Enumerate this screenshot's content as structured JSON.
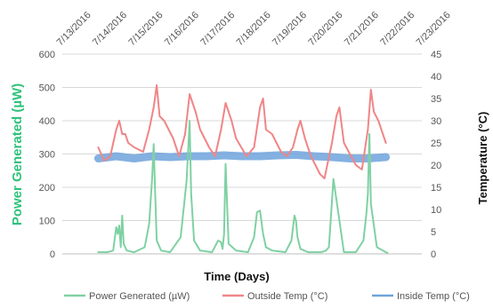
{
  "chart_data": {
    "type": "line",
    "title": "",
    "xlabel": "Time (Days)",
    "ylabel_left": "Power Generated (µW)",
    "ylabel_right": "Temperature (°C)",
    "x_ticks": [
      "7/13/2016",
      "7/14/2016",
      "7/15/2016",
      "7/16/2016",
      "7/17/2016",
      "7/18/2016",
      "7/19/2016",
      "7/20/2016",
      "7/21/2016",
      "7/22/2016",
      "7/23/2016"
    ],
    "y_left_ticks": [
      "0",
      "100",
      "200",
      "300",
      "400",
      "500",
      "600"
    ],
    "y_right_ticks": [
      "0",
      "5",
      "10",
      "15",
      "20",
      "25",
      "30",
      "35",
      "40",
      "45"
    ],
    "ylim_left": [
      0,
      600
    ],
    "ylim_right": [
      0,
      45
    ],
    "xlim": [
      "7/13/2016",
      "7/23/2016"
    ],
    "grid": "horizontal",
    "legend_position": "bottom",
    "series": [
      {
        "name": "Power Generated (µW)",
        "axis": "left",
        "color": "#7fd1a3",
        "x": [
          "7/14/2016 00:00",
          "7/14/2016 06:00",
          "7/14/2016 10:00",
          "7/14/2016 12:00",
          "7/14/2016 13:00",
          "7/14/2016 14:00",
          "7/14/2016 15:00",
          "7/14/2016 16:00",
          "7/14/2016 17:00",
          "7/14/2016 19:00",
          "7/15/2016 00:00",
          "7/15/2016 07:00",
          "7/15/2016 10:00",
          "7/15/2016 12:00",
          "7/15/2016 13:00",
          "7/15/2016 14:00",
          "7/15/2016 15:00",
          "7/15/2016 18:00",
          "7/16/2016 00:00",
          "7/16/2016 07:00",
          "7/16/2016 11:00",
          "7/16/2016 13:00",
          "7/16/2016 14:00",
          "7/16/2016 16:00",
          "7/16/2016 20:00",
          "7/17/2016 04:00",
          "7/17/2016 08:00",
          "7/17/2016 10:00",
          "7/17/2016 11:00",
          "7/17/2016 12:00",
          "7/17/2016 13:00",
          "7/17/2016 15:00",
          "7/17/2016 20:00",
          "7/18/2016 04:00",
          "7/18/2016 08:00",
          "7/18/2016 10:00",
          "7/18/2016 12:00",
          "7/18/2016 14:00",
          "7/18/2016 16:00",
          "7/18/2016 20:00",
          "7/19/2016 05:00",
          "7/19/2016 09:00",
          "7/19/2016 11:00",
          "7/19/2016 12:00",
          "7/19/2016 13:00",
          "7/19/2016 15:00",
          "7/19/2016 20:00",
          "7/20/2016 05:00",
          "7/20/2016 08:00",
          "7/20/2016 10:00",
          "7/20/2016 13:00",
          "7/20/2016 20:00",
          "7/21/2016 04:00",
          "7/21/2016 09:00",
          "7/21/2016 11:00",
          "7/21/2016 12:00",
          "7/21/2016 13:00",
          "7/21/2016 14:00",
          "7/21/2016 18:00",
          "7/22/2016 00:00",
          "7/22/2016 01:00"
        ],
        "values": [
          5,
          5,
          10,
          80,
          60,
          85,
          20,
          115,
          30,
          10,
          5,
          20,
          90,
          230,
          330,
          180,
          40,
          10,
          5,
          50,
          220,
          400,
          180,
          40,
          10,
          5,
          40,
          35,
          15,
          60,
          270,
          30,
          10,
          5,
          50,
          125,
          130,
          60,
          20,
          10,
          5,
          40,
          115,
          100,
          50,
          15,
          5,
          5,
          10,
          20,
          225,
          5,
          5,
          40,
          120,
          180,
          360,
          150,
          20,
          5,
          3
        ]
      },
      {
        "name": "Outside Temp (°C)",
        "axis": "right",
        "color": "#f08587",
        "x": [
          "7/14/2016 00:00",
          "7/14/2016 04:00",
          "7/14/2016 08:00",
          "7/14/2016 12:00",
          "7/14/2016 14:00",
          "7/14/2016 16:00",
          "7/14/2016 18:00",
          "7/14/2016 20:00",
          "7/15/2016 00:00",
          "7/15/2016 06:00",
          "7/15/2016 10:00",
          "7/15/2016 13:00",
          "7/15/2016 15:00",
          "7/15/2016 17:00",
          "7/15/2016 20:00",
          "7/16/2016 02:00",
          "7/16/2016 06:00",
          "7/16/2016 10:00",
          "7/16/2016 13:00",
          "7/16/2016 15:00",
          "7/16/2016 17:00",
          "7/16/2016 20:00",
          "7/17/2016 02:00",
          "7/17/2016 06:00",
          "7/17/2016 10:00",
          "7/17/2016 13:00",
          "7/17/2016 15:00",
          "7/17/2016 17:00",
          "7/17/2016 20:00",
          "7/18/2016 03:00",
          "7/18/2016 08:00",
          "7/18/2016 12:00",
          "7/18/2016 14:00",
          "7/18/2016 16:00",
          "7/18/2016 20:00",
          "7/19/2016 02:00",
          "7/19/2016 06:00",
          "7/19/2016 10:00",
          "7/19/2016 13:00",
          "7/19/2016 15:00",
          "7/19/2016 18:00",
          "7/19/2016 22:00",
          "7/20/2016 04:00",
          "7/20/2016 07:00",
          "7/20/2016 12:00",
          "7/20/2016 15:00",
          "7/20/2016 17:00",
          "7/20/2016 20:00",
          "7/21/2016 04:00",
          "7/21/2016 08:00",
          "7/21/2016 12:00",
          "7/21/2016 14:00",
          "7/21/2016 16:00",
          "7/21/2016 19:00",
          "7/22/2016 00:00"
        ],
        "values": [
          24,
          21,
          22,
          28,
          30,
          27,
          27,
          25,
          24,
          23,
          28,
          33,
          38,
          31,
          30,
          26,
          22,
          27,
          36,
          34,
          32,
          28,
          24,
          22,
          28,
          34,
          32,
          30,
          26,
          22,
          24,
          33,
          35,
          28,
          27,
          23,
          22,
          24,
          28,
          30,
          26,
          22,
          18,
          17,
          25,
          31,
          33,
          25,
          20,
          19,
          28,
          37,
          32,
          30,
          25
        ]
      },
      {
        "name": "Inside Temp (°C)",
        "axis": "right",
        "color": "#6fa3dc",
        "x": [
          "7/14/2016 00:00",
          "7/14/2016 12:00",
          "7/15/2016 00:00",
          "7/15/2016 12:00",
          "7/16/2016 00:00",
          "7/16/2016 12:00",
          "7/17/2016 00:00",
          "7/17/2016 12:00",
          "7/18/2016 00:00",
          "7/18/2016 12:00",
          "7/19/2016 00:00",
          "7/19/2016 12:00",
          "7/20/2016 00:00",
          "7/20/2016 12:00",
          "7/21/2016 00:00",
          "7/21/2016 12:00",
          "7/22/2016 00:00"
        ],
        "values": [
          21.5,
          22,
          21.5,
          22,
          21.8,
          22,
          22,
          22.2,
          22,
          22,
          22.2,
          22.3,
          22,
          21.8,
          21.5,
          21.5,
          21.8
        ]
      }
    ]
  }
}
